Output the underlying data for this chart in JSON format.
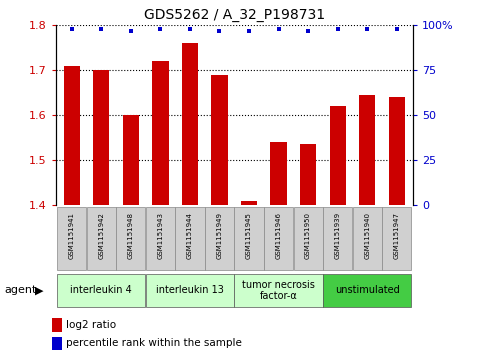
{
  "title": "GDS5262 / A_32_P198731",
  "samples": [
    "GSM1151941",
    "GSM1151942",
    "GSM1151948",
    "GSM1151943",
    "GSM1151944",
    "GSM1151949",
    "GSM1151945",
    "GSM1151946",
    "GSM1151950",
    "GSM1151939",
    "GSM1151940",
    "GSM1151947"
  ],
  "log2_values": [
    1.71,
    1.7,
    1.6,
    1.72,
    1.76,
    1.69,
    1.41,
    1.54,
    1.535,
    1.62,
    1.645,
    1.64
  ],
  "percentile_values": [
    98,
    98,
    97,
    98,
    98,
    97,
    97,
    98,
    97,
    98,
    98,
    98
  ],
  "ylim_left": [
    1.4,
    1.8
  ],
  "ylim_right": [
    0,
    100
  ],
  "yticks_left": [
    1.4,
    1.5,
    1.6,
    1.7,
    1.8
  ],
  "yticks_right": [
    0,
    25,
    50,
    75,
    100
  ],
  "bar_color": "#cc0000",
  "dot_color": "#0000cc",
  "bar_width": 0.55,
  "groups": [
    {
      "label": "interleukin 4",
      "start": 0,
      "end": 3,
      "color": "#ccffcc"
    },
    {
      "label": "interleukin 13",
      "start": 3,
      "end": 6,
      "color": "#ccffcc"
    },
    {
      "label": "tumor necrosis\nfactor-α",
      "start": 6,
      "end": 9,
      "color": "#ccffcc"
    },
    {
      "label": "unstimulated",
      "start": 9,
      "end": 12,
      "color": "#44cc44"
    }
  ],
  "agent_label": "agent",
  "legend_log2": "log2 ratio",
  "legend_pct": "percentile rank within the sample",
  "bar_color_hex": "#cc0000",
  "dot_color_hex": "#0000cc",
  "tick_color_left": "#cc0000",
  "tick_color_right": "#0000cc",
  "grid_dotted_at": [
    1.5,
    1.6,
    1.7,
    1.8
  ],
  "sample_box_color": "#d0d0d0",
  "sample_box_edge": "#888888"
}
